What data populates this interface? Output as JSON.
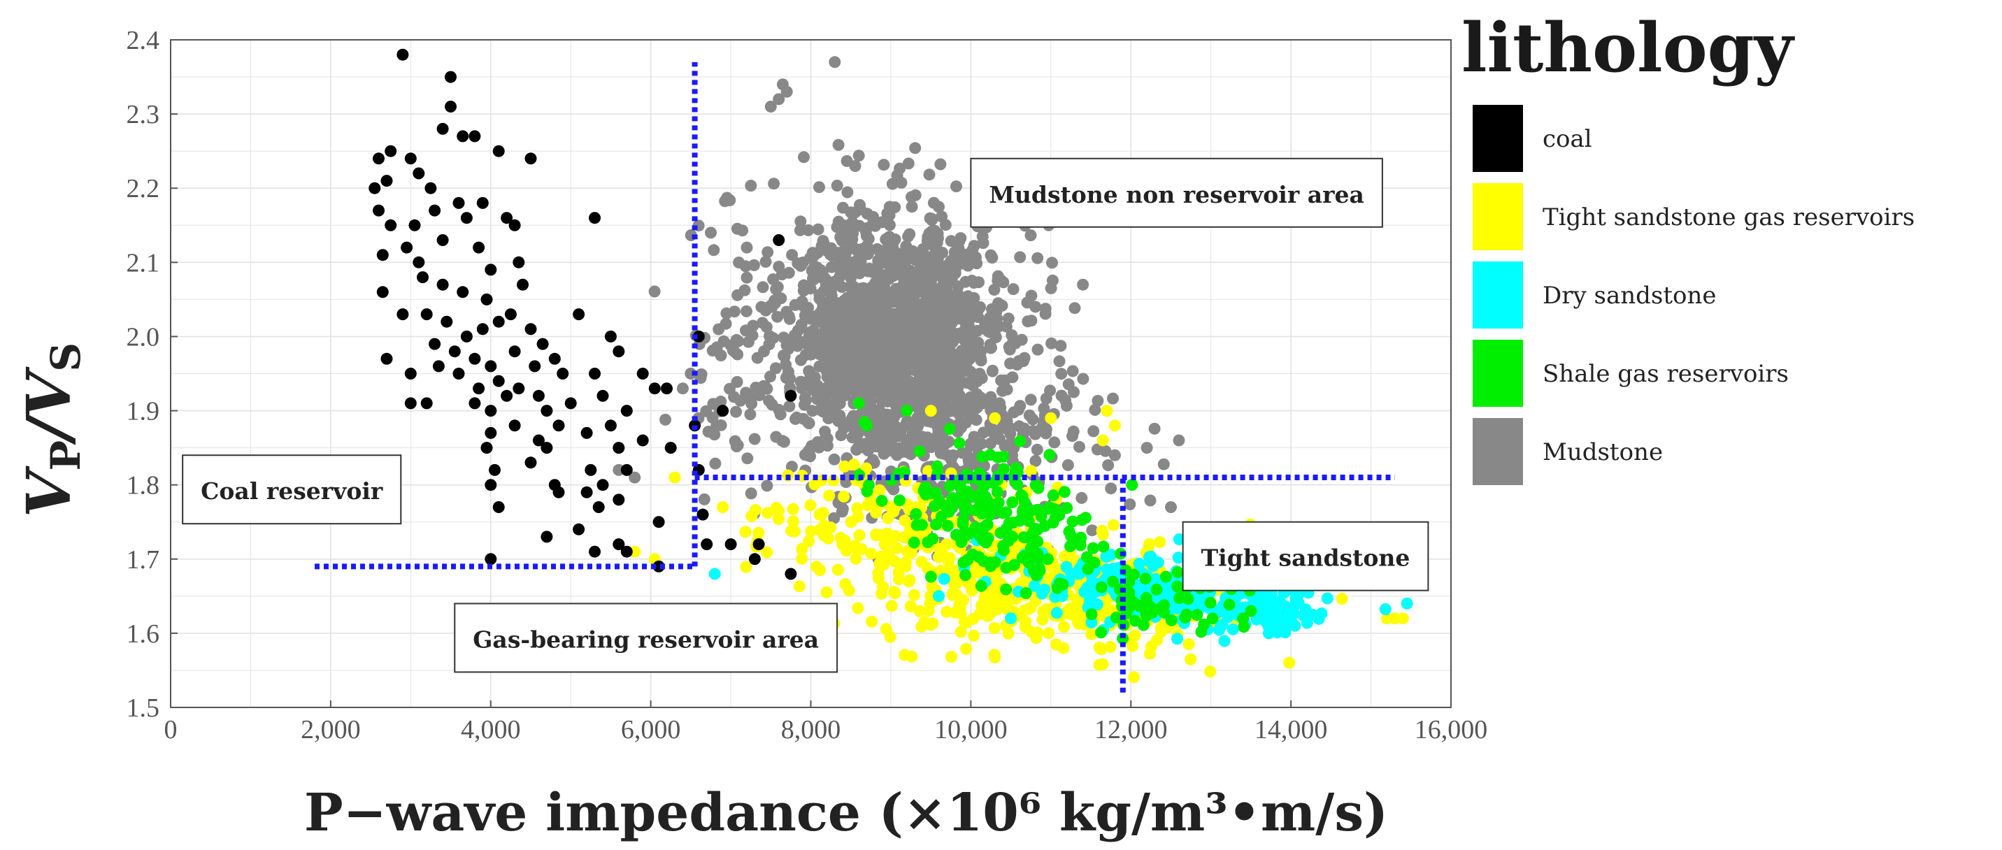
{
  "chart_data": {
    "type": "scatter",
    "title": "",
    "xlabel": "P−wave impedance (×10⁶ kg/m³•m/s)",
    "ylabel": "VP/VS",
    "xlim": [
      0,
      16000
    ],
    "ylim": [
      1.5,
      2.4
    ],
    "x_ticks": [
      {
        "value": 0,
        "label": "0"
      },
      {
        "value": 2000,
        "label": "2,000"
      },
      {
        "value": 4000,
        "label": "4,000"
      },
      {
        "value": 6000,
        "label": "6,000"
      },
      {
        "value": 8000,
        "label": "8,000"
      },
      {
        "value": 10000,
        "label": "10,000"
      },
      {
        "value": 12000,
        "label": "12,000"
      },
      {
        "value": 14000,
        "label": "14,000"
      },
      {
        "value": 16000,
        "label": "16,000"
      }
    ],
    "y_ticks": [
      {
        "value": 1.5,
        "label": "1.5"
      },
      {
        "value": 1.6,
        "label": "1.6"
      },
      {
        "value": 1.7,
        "label": "1.7"
      },
      {
        "value": 1.8,
        "label": "1.8"
      },
      {
        "value": 1.9,
        "label": "1.9"
      },
      {
        "value": 2.0,
        "label": "2.0"
      },
      {
        "value": 2.1,
        "label": "2.1"
      },
      {
        "value": 2.2,
        "label": "2.2"
      },
      {
        "value": 2.3,
        "label": "2.3"
      },
      {
        "value": 2.4,
        "label": "2.4"
      }
    ],
    "grid": true,
    "legend": {
      "title": "lithology",
      "position": "right",
      "entries": [
        {
          "name": "coal",
          "color": "#000000"
        },
        {
          "name": "Tight sandstone gas reservoirs",
          "color": "#ffff00"
        },
        {
          "name": "Dry sandstone",
          "color": "#00ffff"
        },
        {
          "name": "Shale gas reservoirs",
          "color": "#00ee00"
        },
        {
          "name": "Mudstone",
          "color": "#888888"
        }
      ]
    },
    "threshold_lines": [
      {
        "id": "coal-cutoff",
        "orientation": "horizontal",
        "y": 1.69,
        "x_from": 1800,
        "x_to": 6550
      },
      {
        "id": "ip-cutoff-left",
        "orientation": "vertical",
        "x": 6550,
        "y_from": 1.69,
        "y_to": 2.37
      },
      {
        "id": "vpvs-cutoff",
        "orientation": "horizontal",
        "y": 1.81,
        "x_from": 6550,
        "x_to": 15300
      },
      {
        "id": "ip-cutoff-right",
        "orientation": "vertical",
        "x": 11900,
        "y_from": 1.52,
        "y_to": 1.81
      }
    ],
    "annotations": [
      {
        "id": "mudstone-area",
        "text": "Mudstone non reservoir area",
        "x": 10000,
        "y": 2.24
      },
      {
        "id": "coal-reservoir",
        "text": "Coal reservoir",
        "x": 150,
        "y": 1.84
      },
      {
        "id": "tight-sandstone",
        "text": "Tight sandstone",
        "x": 12650,
        "y": 1.75
      },
      {
        "id": "gas-bearing-area",
        "text": "Gas-bearing reservoir area",
        "x": 3550,
        "y": 1.64
      }
    ],
    "series": [
      {
        "name": "Mudstone",
        "color": "#888888",
        "clusters": [
          {
            "n": 1500,
            "mx": 9050,
            "my": 2.0,
            "sx": 700,
            "sy": 0.085,
            "rho": 0
          },
          {
            "n": 260,
            "mx": 9900,
            "my": 1.86,
            "sx": 1100,
            "sy": 0.07,
            "rho": -0.2
          },
          {
            "n": 70,
            "mx": 7100,
            "my": 1.98,
            "sx": 450,
            "sy": 0.1,
            "rho": 0
          }
        ],
        "points": [
          [
            7650,
            2.34
          ],
          [
            7600,
            2.32
          ],
          [
            8300,
            2.37
          ],
          [
            7500,
            2.31
          ],
          [
            7700,
            2.33
          ],
          [
            6750,
            2.14
          ],
          [
            7200,
            2.12
          ],
          [
            11400,
            2.07
          ],
          [
            12200,
            1.85
          ],
          [
            12600,
            1.86
          ],
          [
            5600,
            1.82
          ],
          [
            5800,
            1.81
          ],
          [
            11800,
            1.84
          ],
          [
            12500,
            1.77
          ],
          [
            6400,
            1.93
          ],
          [
            6500,
            1.95
          ]
        ]
      },
      {
        "name": "Tight sandstone gas reservoirs",
        "color": "#ffff00",
        "clusters": [
          {
            "n": 420,
            "mx": 10700,
            "my": 1.66,
            "sx": 1100,
            "sy": 0.045,
            "rho": -0.3
          },
          {
            "n": 120,
            "mx": 8800,
            "my": 1.75,
            "sx": 900,
            "sy": 0.04,
            "rho": 0
          },
          {
            "n": 40,
            "mx": 12300,
            "my": 1.63,
            "sx": 500,
            "sy": 0.03,
            "rho": 0
          }
        ],
        "points": [
          [
            11700,
            1.9
          ],
          [
            11800,
            1.88
          ],
          [
            11650,
            1.86
          ],
          [
            10300,
            1.89
          ],
          [
            9500,
            1.9
          ],
          [
            11000,
            1.89
          ],
          [
            6300,
            1.81
          ],
          [
            6900,
            1.77
          ],
          [
            15200,
            1.62
          ],
          [
            15300,
            1.62
          ],
          [
            15400,
            1.62
          ],
          [
            6050,
            1.7
          ],
          [
            5800,
            1.71
          ]
        ]
      },
      {
        "name": "Dry sandstone",
        "color": "#00ffff",
        "clusters": [
          {
            "n": 280,
            "mx": 12300,
            "my": 1.66,
            "sx": 900,
            "sy": 0.025,
            "rho": -0.4
          },
          {
            "n": 60,
            "mx": 13700,
            "my": 1.63,
            "sx": 280,
            "sy": 0.015,
            "rho": 0
          }
        ],
        "points": [
          [
            15450,
            1.64
          ],
          [
            9600,
            1.65
          ],
          [
            6800,
            1.68
          ],
          [
            14000,
            1.62
          ],
          [
            14050,
            1.61
          ]
        ]
      },
      {
        "name": "Shale gas reservoirs",
        "color": "#00ee00",
        "clusters": [
          {
            "n": 190,
            "mx": 10300,
            "my": 1.76,
            "sx": 650,
            "sy": 0.045,
            "rho": -0.4
          },
          {
            "n": 60,
            "mx": 12300,
            "my": 1.64,
            "sx": 450,
            "sy": 0.025,
            "rho": 0
          }
        ],
        "points": [
          [
            8600,
            1.91
          ],
          [
            9200,
            1.9
          ],
          [
            8700,
            1.88
          ],
          [
            13500,
            1.63
          ],
          [
            13400,
            1.62
          ]
        ]
      },
      {
        "name": "coal",
        "color": "#000000",
        "points": [
          [
            2900,
            2.38
          ],
          [
            3500,
            2.35
          ],
          [
            3500,
            2.31
          ],
          [
            3650,
            2.27
          ],
          [
            3800,
            2.27
          ],
          [
            3400,
            2.28
          ],
          [
            2600,
            2.24
          ],
          [
            2750,
            2.25
          ],
          [
            3000,
            2.24
          ],
          [
            4100,
            2.25
          ],
          [
            4500,
            2.24
          ],
          [
            2550,
            2.2
          ],
          [
            2700,
            2.21
          ],
          [
            3100,
            2.22
          ],
          [
            3250,
            2.2
          ],
          [
            3600,
            2.18
          ],
          [
            3900,
            2.18
          ],
          [
            2600,
            2.17
          ],
          [
            2750,
            2.15
          ],
          [
            3050,
            2.15
          ],
          [
            3300,
            2.17
          ],
          [
            3700,
            2.16
          ],
          [
            4200,
            2.16
          ],
          [
            4300,
            2.15
          ],
          [
            5300,
            2.16
          ],
          [
            2650,
            2.11
          ],
          [
            2950,
            2.12
          ],
          [
            3100,
            2.1
          ],
          [
            3400,
            2.13
          ],
          [
            3850,
            2.12
          ],
          [
            4000,
            2.09
          ],
          [
            4350,
            2.1
          ],
          [
            2650,
            2.06
          ],
          [
            2900,
            2.03
          ],
          [
            3150,
            2.08
          ],
          [
            3400,
            2.07
          ],
          [
            3650,
            2.06
          ],
          [
            3950,
            2.05
          ],
          [
            4400,
            2.07
          ],
          [
            3200,
            2.03
          ],
          [
            3450,
            2.02
          ],
          [
            3700,
            2.0
          ],
          [
            3900,
            2.01
          ],
          [
            4100,
            2.02
          ],
          [
            4250,
            2.03
          ],
          [
            4500,
            2.01
          ],
          [
            4650,
            1.99
          ],
          [
            5100,
            2.03
          ],
          [
            3300,
            1.99
          ],
          [
            3550,
            1.98
          ],
          [
            3800,
            1.97
          ],
          [
            4000,
            1.96
          ],
          [
            4300,
            1.98
          ],
          [
            4550,
            1.96
          ],
          [
            4800,
            1.97
          ],
          [
            5500,
            2.0
          ],
          [
            2700,
            1.97
          ],
          [
            3000,
            1.95
          ],
          [
            3350,
            1.96
          ],
          [
            3600,
            1.95
          ],
          [
            3850,
            1.93
          ],
          [
            4100,
            1.94
          ],
          [
            4350,
            1.93
          ],
          [
            4600,
            1.92
          ],
          [
            4900,
            1.95
          ],
          [
            5300,
            1.95
          ],
          [
            5600,
            1.98
          ],
          [
            5900,
            1.95
          ],
          [
            6200,
            1.93
          ],
          [
            3800,
            1.91
          ],
          [
            4000,
            1.9
          ],
          [
            4200,
            1.92
          ],
          [
            4700,
            1.9
          ],
          [
            5000,
            1.91
          ],
          [
            5400,
            1.92
          ],
          [
            5700,
            1.9
          ],
          [
            6050,
            1.93
          ],
          [
            3200,
            1.91
          ],
          [
            3000,
            1.91
          ],
          [
            4000,
            1.87
          ],
          [
            4300,
            1.88
          ],
          [
            4600,
            1.86
          ],
          [
            4850,
            1.88
          ],
          [
            5200,
            1.87
          ],
          [
            5500,
            1.88
          ],
          [
            3950,
            1.85
          ],
          [
            4700,
            1.85
          ],
          [
            5600,
            1.85
          ],
          [
            5900,
            1.86
          ],
          [
            6250,
            1.85
          ],
          [
            4050,
            1.82
          ],
          [
            4500,
            1.83
          ],
          [
            5250,
            1.82
          ],
          [
            5700,
            1.82
          ],
          [
            6600,
            1.82
          ],
          [
            4000,
            1.8
          ],
          [
            4800,
            1.8
          ],
          [
            4850,
            1.79
          ],
          [
            5200,
            1.79
          ],
          [
            5400,
            1.8
          ],
          [
            5600,
            1.78
          ],
          [
            4100,
            1.77
          ],
          [
            5350,
            1.77
          ],
          [
            6100,
            1.75
          ],
          [
            6650,
            1.76
          ],
          [
            5100,
            1.74
          ],
          [
            4700,
            1.73
          ],
          [
            5600,
            1.72
          ],
          [
            5700,
            1.71
          ],
          [
            5300,
            1.71
          ],
          [
            6100,
            1.69
          ],
          [
            6700,
            1.72
          ],
          [
            7000,
            1.72
          ],
          [
            7350,
            1.72
          ],
          [
            7750,
            1.68
          ],
          [
            7300,
            1.7
          ],
          [
            4000,
            1.7
          ],
          [
            6900,
            1.9
          ],
          [
            7600,
            2.13
          ],
          [
            6600,
            2.0
          ],
          [
            7750,
            1.92
          ],
          [
            6550,
            1.88
          ]
        ]
      }
    ]
  }
}
